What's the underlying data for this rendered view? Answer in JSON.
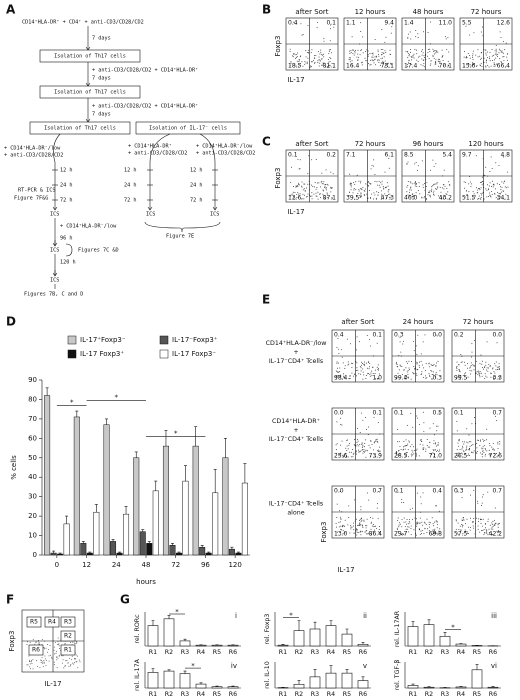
{
  "panel_a": {
    "label": "A",
    "texts": [
      "CD14⁺HLA-DR⁺ + CD4⁺ + anti-CD3/CD28/CD2",
      "7 days",
      "Isolation of Th17 cells",
      "+ anti-CD3/CD28/CD2 + CD14⁺HLA-DR⁺",
      "7 days",
      "Isolation of Th17 cells",
      "+ anti-CD3/CD28/CD2 + CD14⁺HLA-DR⁺",
      "7 days",
      "Isolation of Th17 cells",
      "Isolation of IL-17⁻ cells",
      "+ CD14⁺HLA-DR⁻/low",
      "+ anti-CD3/CD28/CD2",
      "+ CD14⁺HLA-DR⁺",
      "+ anti-CD3/CD28/CD2",
      "+ CD14⁺HLA-DR⁻/low",
      "+ anti-CD3/CD28/CD2",
      "12 h",
      "24 h",
      "72 h",
      "RT-PCR & ICS",
      "Figure 7F&G",
      "ICS",
      "+ CD14⁺HLA-DR⁻/low",
      "96 h",
      "ICS",
      "120 h",
      "Figures 7C &D",
      "ICS",
      "Figures 7B, C and D",
      "12 h",
      "24 h",
      "72 h",
      "ICS",
      "12 h",
      "24 h",
      "72 h",
      "ICS",
      "Figure 7E"
    ]
  },
  "panel_b": {
    "label": "B",
    "ylabel": "Foxp3",
    "xlabel": "IL-17",
    "plots": [
      {
        "title": "after Sort",
        "q": [
          "0.4",
          "0.1",
          "18.5",
          "81.1"
        ]
      },
      {
        "title": "12 hours",
        "q": [
          "1.1",
          "9.4",
          "16.4",
          "73.1"
        ]
      },
      {
        "title": "48 hours",
        "q": [
          "1.4",
          "11.0",
          "17.4",
          "70.1"
        ]
      },
      {
        "title": "72 hours",
        "q": [
          "5.5",
          "12.6",
          "15.6",
          "66.4"
        ]
      }
    ]
  },
  "panel_c": {
    "label": "C",
    "ylabel": "Foxp3",
    "xlabel": "IL-17",
    "plots": [
      {
        "title": "after Sort",
        "q": [
          "0.1",
          "0.2",
          "12.6",
          "87.1"
        ]
      },
      {
        "title": "72 hours",
        "q": [
          "7.1",
          "6.1",
          "39.5",
          "47.3"
        ]
      },
      {
        "title": "96 hours",
        "q": [
          "8.5",
          "5.4",
          "46.0",
          "40.2"
        ]
      },
      {
        "title": "120 hours",
        "q": [
          "9.7",
          "4.8",
          "51.5",
          "34.1"
        ]
      }
    ]
  },
  "panel_d": {
    "label": "D",
    "type": "bar",
    "ylabel": "% cells",
    "xlabel": "hours",
    "categories": [
      0,
      12,
      24,
      48,
      72,
      96,
      120
    ],
    "ylim": [
      0,
      90
    ],
    "yticks": [
      0,
      10,
      20,
      30,
      40,
      50,
      60,
      70,
      80,
      90
    ],
    "annotations": [
      "*",
      "*",
      "*"
    ],
    "series": [
      {
        "name": "IL-17⁺Foxp3⁻",
        "color": "#c8c8c8",
        "values": [
          82,
          71,
          67,
          50,
          56,
          56,
          50
        ],
        "errors": [
          4,
          3,
          3,
          3,
          8,
          10,
          10
        ]
      },
      {
        "name": "IL-17⁻Foxp3⁺",
        "color": "#555555",
        "values": [
          1,
          6,
          7,
          12,
          5,
          4,
          3
        ],
        "errors": [
          1,
          1,
          1,
          1,
          1,
          1,
          1
        ]
      },
      {
        "name": "IL-17 Foxp3⁺",
        "color": "#111111",
        "values": [
          0.5,
          1,
          1,
          6,
          1,
          1,
          1
        ],
        "errors": [
          0.5,
          0.5,
          0.5,
          1,
          0.5,
          0.5,
          0.5
        ]
      },
      {
        "name": "IL-17 Foxp3⁻",
        "color": "#ffffff",
        "values": [
          16,
          22,
          21,
          33,
          38,
          32,
          37
        ],
        "errors": [
          4,
          4,
          4,
          5,
          8,
          12,
          10
        ]
      }
    ]
  },
  "panel_e": {
    "label": "E",
    "ylabel": "Foxp3",
    "xlabel": "IL-17",
    "columns": [
      "after Sort",
      "24 hours",
      "72 hours"
    ],
    "rows": [
      {
        "label": [
          "CD14⁺HLA-DR⁻/low",
          "+",
          "IL-17⁻CD4⁺ Tcells"
        ],
        "plots": [
          [
            "0.4",
            "0.1",
            "98.4",
            "1.0"
          ],
          [
            "0.3",
            "0.0",
            "99.4",
            "0.3"
          ],
          [
            "0.2",
            "0.0",
            "99.5",
            "0.3"
          ]
        ]
      },
      {
        "label": [
          "CD14⁺HLA-DR⁺",
          "+",
          "IL-17⁻CD4⁺ Tcells"
        ],
        "plots": [
          [
            "0.0",
            "0.1",
            "25.6",
            "73.9"
          ],
          [
            "0.1",
            "0.5",
            "28.5",
            "71.0"
          ],
          [
            "0.1",
            "0.7",
            "26.5",
            "72.6"
          ]
        ]
      },
      {
        "label": [
          "IL-17⁻CD4⁺ Tcells",
          "alone"
        ],
        "plots": [
          [
            "0.0",
            "0.7",
            "13.0",
            "86.4"
          ],
          [
            "0.1",
            "0.4",
            "29.7",
            "69.8"
          ],
          [
            "0.3",
            "0.7",
            "57.5",
            "42.2"
          ]
        ]
      }
    ]
  },
  "panel_f": {
    "label": "F",
    "ylabel": "Foxp3",
    "xlabel": "IL-17",
    "gates": [
      "R5",
      "R4",
      "R3",
      "R2",
      "R6",
      "R1"
    ]
  },
  "panel_g": {
    "label": "G",
    "categories": [
      "R1",
      "R2",
      "R3",
      "R4",
      "R5",
      "R6"
    ],
    "charts": [
      {
        "type": "bar",
        "numeral": "i",
        "ylabel": "rel. RORc",
        "ylim": [
          0,
          2
        ],
        "values": [
          1.2,
          1.6,
          0.3,
          0.05,
          0.05,
          0.05
        ],
        "errors": [
          0.3,
          0.2,
          0.1,
          0.02,
          0.02,
          0.02
        ],
        "annotation": "*"
      },
      {
        "type": "bar",
        "numeral": "ii",
        "ylabel": "rel. Foxp3",
        "ylim": [
          0,
          20
        ],
        "values": [
          0.5,
          9,
          10,
          12,
          7,
          1
        ],
        "errors": [
          0.5,
          6,
          4,
          3,
          3,
          1
        ],
        "annotation": "*"
      },
      {
        "type": "bar",
        "numeral": "iii",
        "ylabel": "rel. IL-17AR",
        "ylim": [
          0,
          35
        ],
        "values": [
          20,
          22,
          10,
          2,
          0.5,
          0.2
        ],
        "errors": [
          5,
          5,
          4,
          0.5,
          0.2,
          0.1
        ],
        "annotation": "*"
      },
      {
        "type": "bar",
        "numeral": "iv",
        "ylabel": "rel. IL-17A",
        "ylim": [
          0,
          20
        ],
        "values": [
          12,
          13,
          11,
          3,
          1,
          1
        ],
        "errors": [
          3,
          1,
          2,
          1,
          0.5,
          0.5
        ],
        "annotation": "*"
      },
      {
        "type": "bar",
        "numeral": "v",
        "ylabel": "rel. IL-10",
        "ylim": [
          0,
          7
        ],
        "values": [
          0.1,
          1,
          3,
          4,
          4,
          2
        ],
        "errors": [
          0.1,
          1,
          2,
          2,
          1,
          1
        ]
      },
      {
        "type": "bar",
        "numeral": "vi",
        "ylabel": "rel. TGF-β",
        "ylim": [
          0,
          10
        ],
        "values": [
          1,
          0.3,
          0.1,
          0.4,
          7,
          0.3
        ],
        "errors": [
          0.5,
          0.2,
          0.1,
          0.2,
          2,
          0.3
        ]
      }
    ]
  }
}
